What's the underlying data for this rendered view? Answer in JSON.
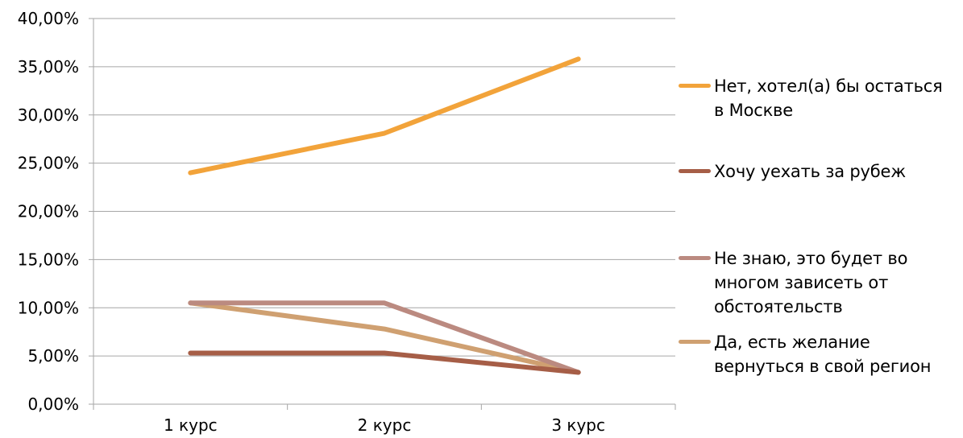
{
  "chart_data": {
    "type": "line",
    "categories": [
      "1 курс",
      "2 курс",
      "3 курс"
    ],
    "y_ticks": [
      "0,00%",
      "5,00%",
      "10,00%",
      "15,00%",
      "20,00%",
      "25,00%",
      "30,00%",
      "35,00%",
      "40,00%"
    ],
    "ylim": [
      0,
      40
    ],
    "y_unit": "%",
    "grid": "horizontal",
    "legend_position": "right",
    "series": [
      {
        "name": "Нет, хотел(а) бы остаться в Москве",
        "label_lines": "Нет, хотел(а) бы остаться\nв Москве",
        "color": "#F2A33A",
        "values": [
          24.0,
          28.1,
          35.8
        ]
      },
      {
        "name": "Хочу уехать за рубеж",
        "label_lines": "Хочу уехать за рубеж",
        "color": "#A65E47",
        "values": [
          5.3,
          5.3,
          3.3
        ]
      },
      {
        "name": "Не знаю, это будет во многом зависеть от обстоятельств",
        "label_lines": "Не знаю, это будет во\nмногом зависеть от\nобстоятельств",
        "color": "#BB8A80",
        "values": [
          10.5,
          10.5,
          3.3
        ]
      },
      {
        "name": "Да, есть желание вернуться в свой регион",
        "label_lines": "Да, есть желание\nвернуться в свой регион",
        "color": "#CFA071",
        "values": [
          10.5,
          7.8,
          3.3
        ]
      }
    ]
  }
}
